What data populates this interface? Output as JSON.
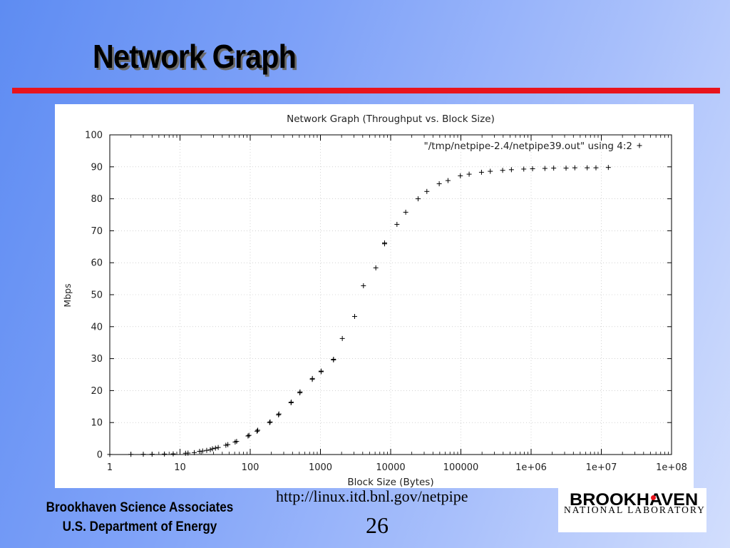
{
  "slide": {
    "title": "Network Graph",
    "url": "http://linux.itd.bnl.gov/netpipe",
    "page_number": "26",
    "org_line1": "Brookhaven Science Associates",
    "org_line2": "U.S. Department of Energy",
    "logo_main": "BROOKHAVEN",
    "logo_sub": "NATIONAL LABORATORY",
    "accent_color": "#e8141c"
  },
  "chart_data": {
    "type": "scatter",
    "title": "Network Graph (Throughput vs. Block Size)",
    "xlabel": "Block Size (Bytes)",
    "ylabel": "Mbps",
    "x_scale": "log",
    "xlim": [
      1,
      100000000
    ],
    "ylim": [
      0,
      100
    ],
    "x_ticks": [
      "1",
      "10",
      "100",
      "1000",
      "10000",
      "100000",
      "1e+06",
      "1e+07",
      "1e+08"
    ],
    "y_ticks": [
      "0",
      "10",
      "20",
      "30",
      "40",
      "50",
      "60",
      "70",
      "80",
      "90",
      "100"
    ],
    "grid": true,
    "legend": "top-right",
    "marker": "+",
    "series": [
      {
        "name": "\"/tmp/netpipe-2.4/netpipe39.out\" using 4:2",
        "points": [
          [
            1,
            0.02
          ],
          [
            2,
            0.05
          ],
          [
            3,
            0.08
          ],
          [
            4,
            0.1
          ],
          [
            6,
            0.15
          ],
          [
            8,
            0.2
          ],
          [
            12,
            0.4
          ],
          [
            13,
            0.45
          ],
          [
            16,
            0.6
          ],
          [
            19,
            1.0
          ],
          [
            21,
            1.1
          ],
          [
            24,
            1.3
          ],
          [
            27,
            1.5
          ],
          [
            29,
            1.8
          ],
          [
            32,
            2.0
          ],
          [
            35,
            2.2
          ],
          [
            45,
            2.9
          ],
          [
            48,
            3.1
          ],
          [
            61,
            3.9
          ],
          [
            64,
            4.1
          ],
          [
            93,
            5.8
          ],
          [
            96,
            6.0
          ],
          [
            125,
            7.3
          ],
          [
            128,
            7.6
          ],
          [
            189,
            10.0
          ],
          [
            192,
            10.2
          ],
          [
            253,
            12.4
          ],
          [
            256,
            12.7
          ],
          [
            381,
            16.2
          ],
          [
            384,
            16.4
          ],
          [
            509,
            19.3
          ],
          [
            512,
            19.6
          ],
          [
            765,
            23.5
          ],
          [
            768,
            23.8
          ],
          [
            1021,
            25.9
          ],
          [
            1024,
            26.1
          ],
          [
            1533,
            29.6
          ],
          [
            1536,
            29.8
          ],
          [
            2048,
            36.3
          ],
          [
            3072,
            43.2
          ],
          [
            4096,
            52.8
          ],
          [
            6144,
            58.4
          ],
          [
            8192,
            65.9
          ],
          [
            8195,
            66.2
          ],
          [
            12288,
            72.0
          ],
          [
            16384,
            75.8
          ],
          [
            24576,
            80.0
          ],
          [
            32768,
            82.3
          ],
          [
            49152,
            84.7
          ],
          [
            65536,
            85.7
          ],
          [
            98304,
            87.2
          ],
          [
            131072,
            87.7
          ],
          [
            196608,
            88.3
          ],
          [
            262144,
            88.6
          ],
          [
            393216,
            88.9
          ],
          [
            524288,
            89.1
          ],
          [
            786432,
            89.3
          ],
          [
            1048576,
            89.4
          ],
          [
            1572864,
            89.5
          ],
          [
            2097152,
            89.6
          ],
          [
            3145728,
            89.6
          ],
          [
            4194304,
            89.7
          ],
          [
            6291456,
            89.7
          ],
          [
            8388608,
            89.7
          ],
          [
            12582912,
            89.8
          ]
        ]
      }
    ]
  }
}
